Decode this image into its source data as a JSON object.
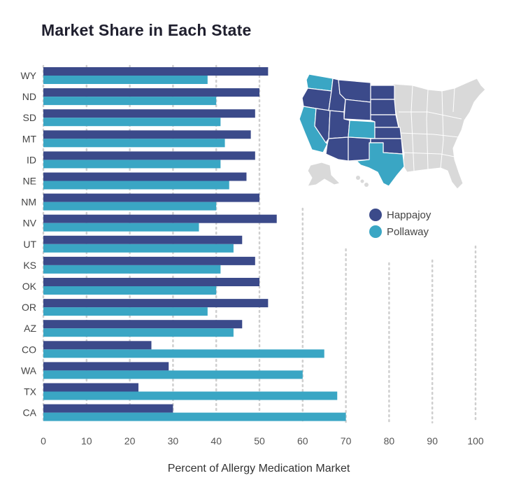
{
  "chart_data": {
    "type": "bar",
    "orientation": "horizontal",
    "title": "Market Share in Each State",
    "xlabel": "Percent of Allergy Medication Market",
    "ylabel": "",
    "xlim": [
      0,
      100
    ],
    "xticks": [
      0,
      10,
      20,
      30,
      40,
      50,
      60,
      70,
      80,
      90,
      100
    ],
    "grid": "vertical dotted",
    "legend_position": "right",
    "categories": [
      "WY",
      "ND",
      "SD",
      "MT",
      "ID",
      "NE",
      "NM",
      "NV",
      "UT",
      "KS",
      "OK",
      "OR",
      "AZ",
      "CO",
      "WA",
      "TX",
      "CA"
    ],
    "series": [
      {
        "name": "Happajoy",
        "color": "#3b4a8a",
        "values": [
          52,
          50,
          49,
          48,
          49,
          47,
          50,
          54,
          46,
          49,
          50,
          52,
          46,
          25,
          29,
          22,
          30
        ]
      },
      {
        "name": "Pollaway",
        "color": "#3aa6c4",
        "values": [
          38,
          40,
          41,
          42,
          41,
          43,
          40,
          36,
          44,
          41,
          40,
          38,
          44,
          65,
          60,
          68,
          70
        ]
      }
    ]
  },
  "map": {
    "land_color": "#d9d9d9",
    "happajoy_states": [
      "WY",
      "ND",
      "SD",
      "MT",
      "ID",
      "NE",
      "NM",
      "NV",
      "UT",
      "KS",
      "OK",
      "OR",
      "AZ"
    ],
    "pollaway_states": [
      "CO",
      "WA",
      "TX",
      "CA"
    ]
  }
}
